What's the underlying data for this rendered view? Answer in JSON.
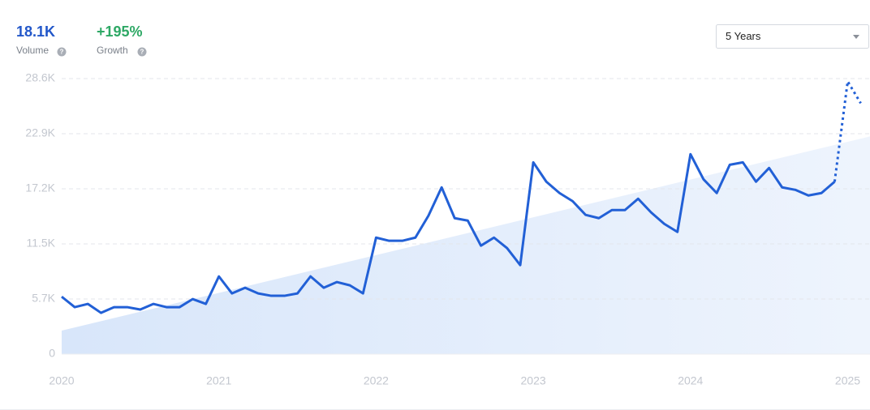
{
  "stats": [
    {
      "value": "18.1K",
      "label": "Volume"
    },
    {
      "value": "+195%",
      "label": "Growth"
    }
  ],
  "period_select": "5 Years",
  "chart_data": {
    "type": "line",
    "xlim": [
      2020,
      2025.142
    ],
    "xticks": [
      2020,
      2021,
      2022,
      2023,
      2024,
      2025
    ],
    "ylim": [
      0,
      28640
    ],
    "yticks": [
      0,
      {
        "value": 5728,
        "label": "5.7K"
      },
      {
        "value": 11456,
        "label": "11.5K"
      },
      {
        "value": 17184,
        "label": "17.2K"
      },
      {
        "value": 22912,
        "label": "22.9K"
      },
      {
        "value": 28640,
        "label": "28.6K"
      }
    ],
    "grid": true,
    "x": [
      2020,
      2020.083,
      2020.167,
      2020.25,
      2020.333,
      2020.417,
      2020.5,
      2020.583,
      2020.667,
      2020.75,
      2020.833,
      2020.917,
      2021,
      2021.083,
      2021.167,
      2021.25,
      2021.333,
      2021.417,
      2021.5,
      2021.583,
      2021.667,
      2021.75,
      2021.833,
      2021.917,
      2022,
      2022.083,
      2022.167,
      2022.25,
      2022.333,
      2022.417,
      2022.5,
      2022.583,
      2022.667,
      2022.75,
      2022.833,
      2022.917,
      2023,
      2023.083,
      2023.167,
      2023.25,
      2023.333,
      2023.417,
      2023.5,
      2023.583,
      2023.667,
      2023.75,
      2023.833,
      2023.917,
      2024,
      2024.083,
      2024.167,
      2024.25,
      2024.333,
      2024.417,
      2024.5,
      2024.583,
      2024.667,
      2024.75,
      2024.833,
      2024.917,
      2025,
      2025.083
    ],
    "series": [
      {
        "color": "#2260d6",
        "style": "solid",
        "values": [
          5970,
          4880,
          5215,
          4290,
          4880,
          4880,
          4630,
          5215,
          4880,
          4880,
          5720,
          5215,
          8075,
          6310,
          6900,
          6310,
          6060,
          6060,
          6310,
          8075,
          6900,
          7490,
          7150,
          6310,
          12110,
          11780,
          11780,
          12110,
          14385,
          17330,
          14130,
          13880,
          11270,
          12110,
          11020,
          9250,
          19935,
          17920,
          16740,
          15900,
          14470,
          14130,
          14970,
          14970,
          16150,
          14720,
          13540,
          12700,
          20780,
          18170,
          16740,
          19680,
          19935,
          17920,
          19350,
          17330,
          17075,
          16490,
          16740,
          17920,
          null,
          null
        ]
      },
      {
        "color": "#2260d6",
        "style": "dotted",
        "values": [
          null,
          null,
          null,
          null,
          null,
          null,
          null,
          null,
          null,
          null,
          null,
          null,
          null,
          null,
          null,
          null,
          null,
          null,
          null,
          null,
          null,
          null,
          null,
          null,
          null,
          null,
          null,
          null,
          null,
          null,
          null,
          null,
          null,
          null,
          null,
          null,
          null,
          null,
          null,
          null,
          null,
          null,
          null,
          null,
          null,
          null,
          null,
          null,
          null,
          null,
          null,
          null,
          null,
          null,
          null,
          null,
          null,
          null,
          null,
          17920,
          28350,
          26080
        ]
      }
    ],
    "trend": {
      "x": [
        2020,
        2025.142
      ],
      "values": [
        2440,
        22630
      ]
    }
  }
}
